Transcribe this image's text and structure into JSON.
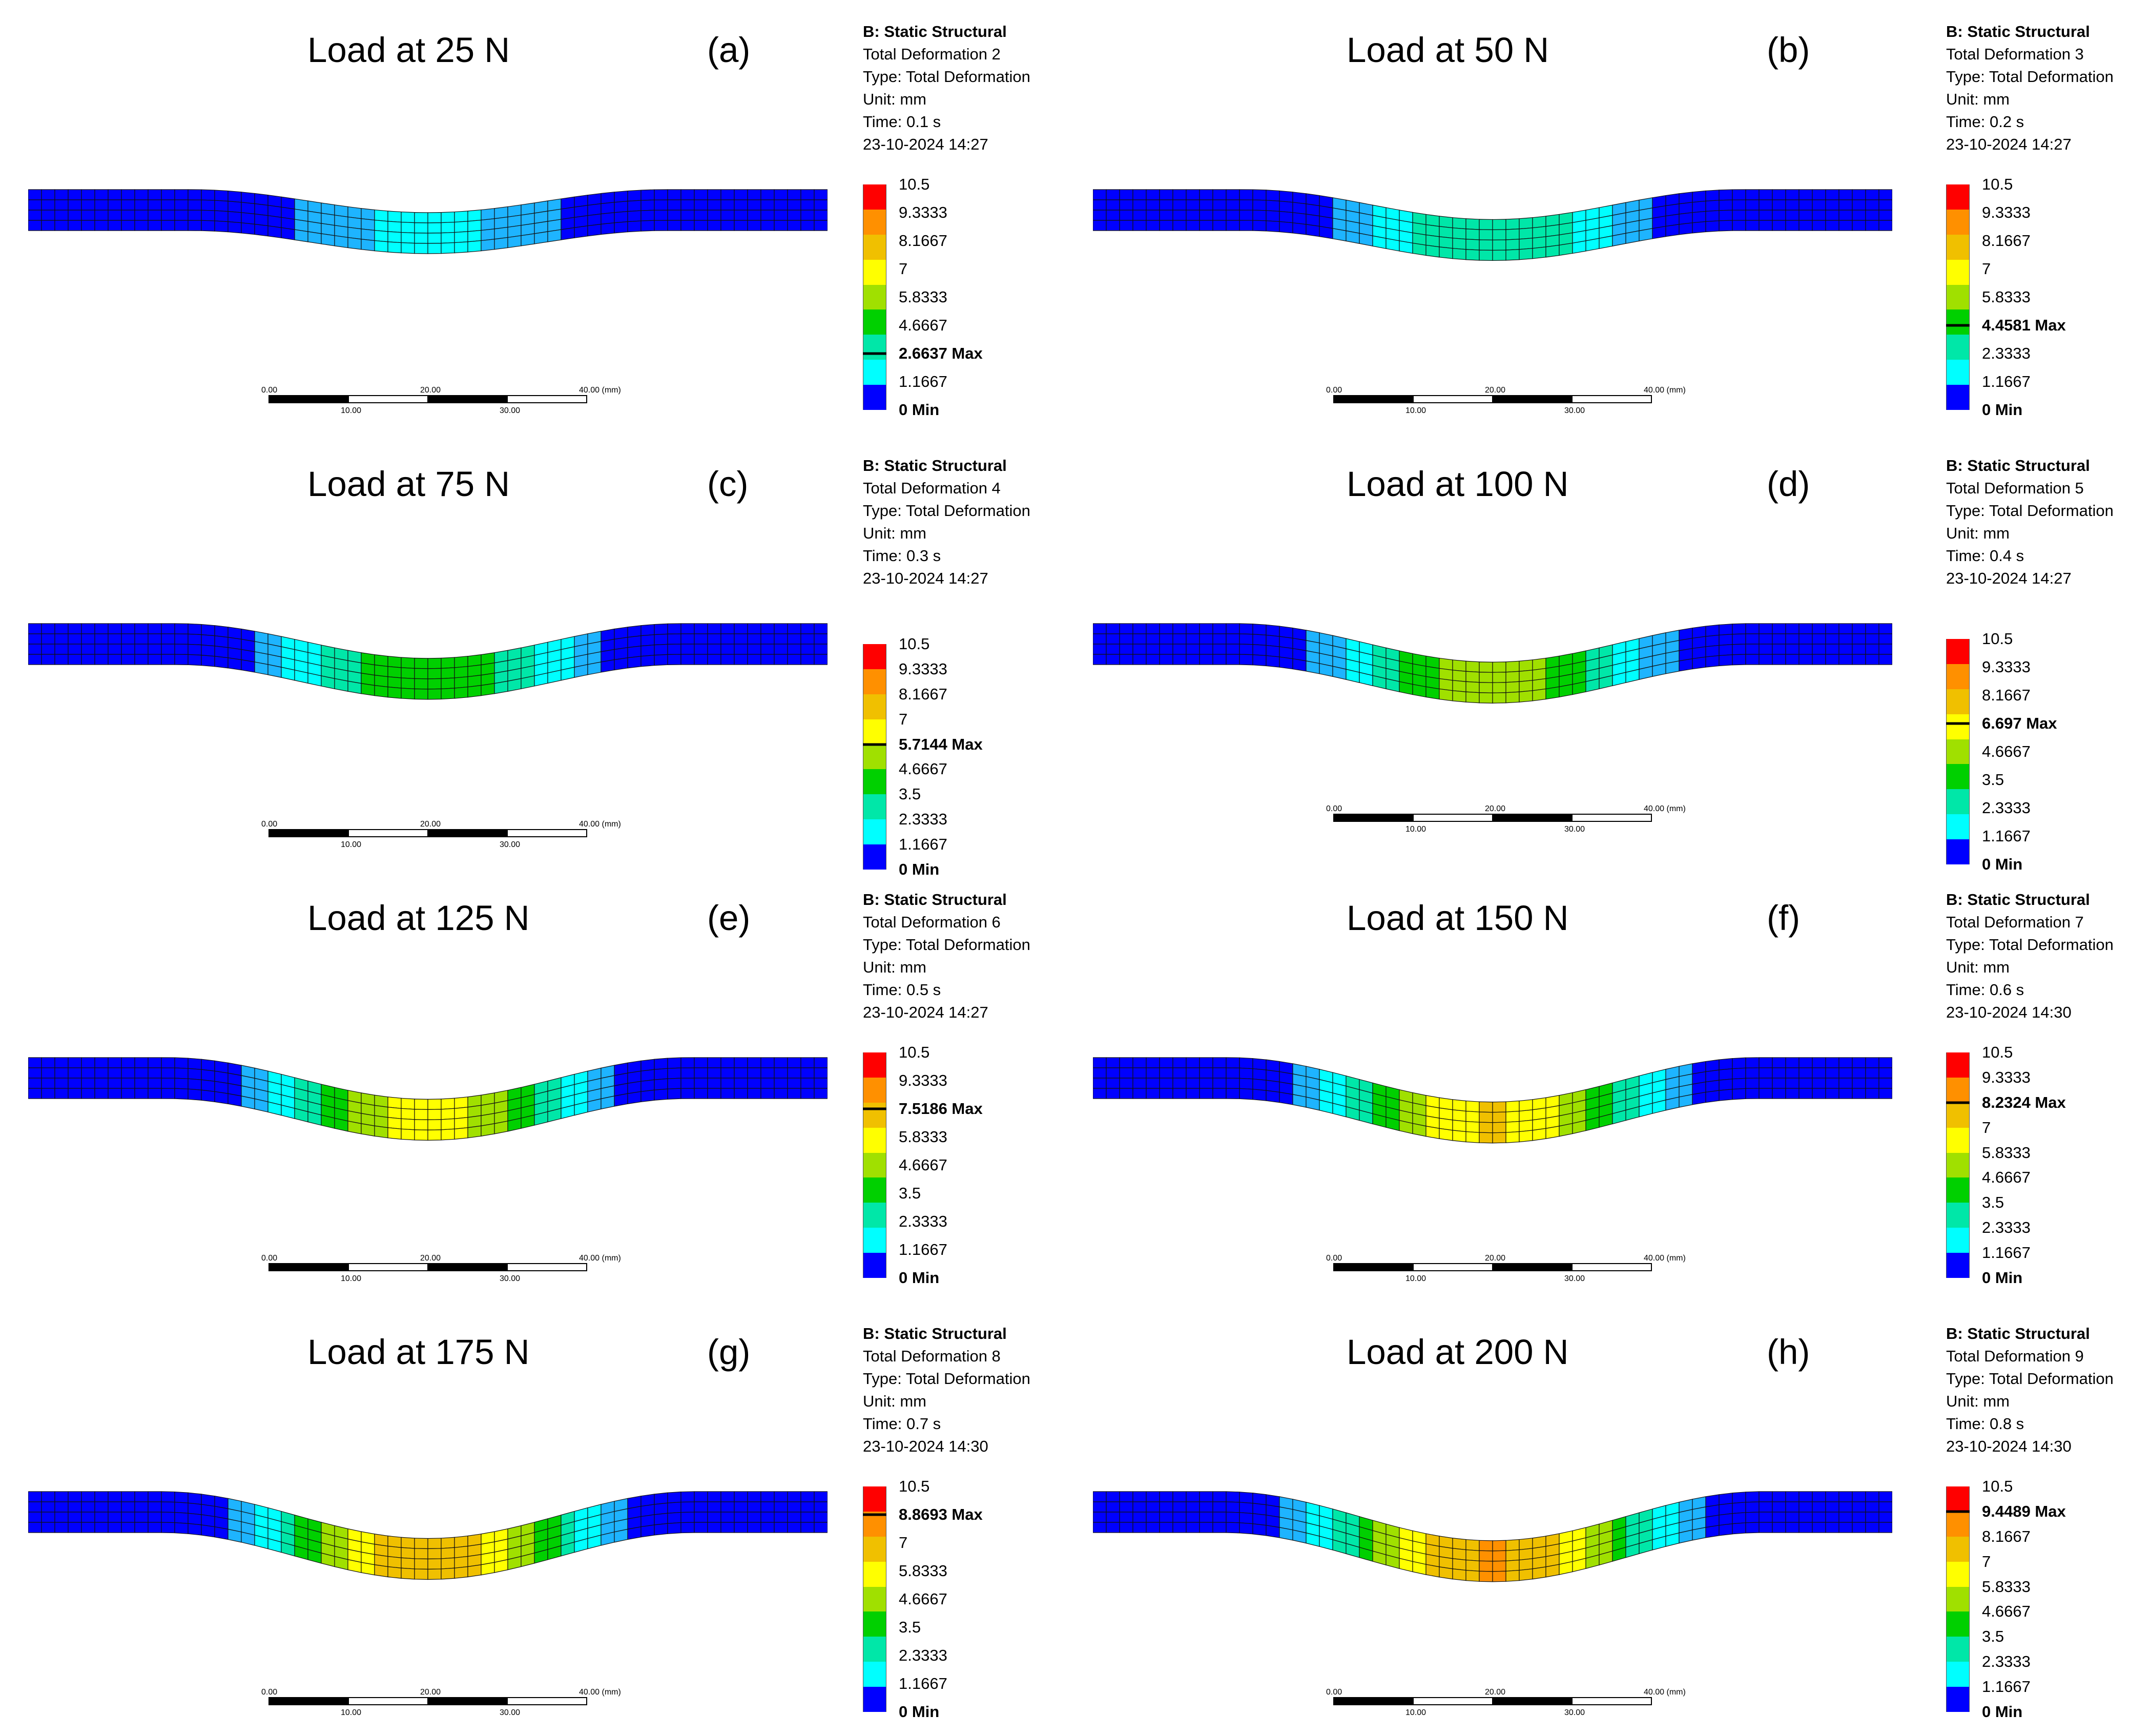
{
  "common": {
    "header": "B: Static Structural",
    "type": "Type: Total Deformation",
    "unit": "Unit: mm",
    "scale_top": [
      "0.00",
      "20.00",
      "40.00 (mm)"
    ],
    "scale_bottom": [
      "10.00",
      "30.00"
    ]
  },
  "colors": {
    "dark_blue": "#0000ff",
    "mid_blue": "#0080ff",
    "light_blue": "#1eb4ff",
    "cyan": "#00ffff",
    "teal": "#00e7a8",
    "green": "#00d000",
    "yellow_green": "#a0e000",
    "yellow": "#ffff00",
    "gold": "#f0c000",
    "orange": "#ff9000",
    "red": "#ff0000",
    "mesh_line": "#111111"
  },
  "panels": [
    {
      "title": "Load at 25 N",
      "letter": "(a)",
      "result": "Total Deformation 2",
      "time": "Time: 0.1 s",
      "timestamp": "23-10-2024 14:27",
      "max_value": 2.6637,
      "load_n": 25,
      "legend": [
        "10.5",
        "9.3333",
        "8.1667",
        "7",
        "5.8333",
        "4.6667",
        "2.6637 Max",
        "1.1667",
        "0 Min"
      ]
    },
    {
      "title": "Load at 50 N",
      "letter": "(b)",
      "result": "Total Deformation 3",
      "time": "Time: 0.2 s",
      "timestamp": "23-10-2024 14:27",
      "max_value": 4.4581,
      "load_n": 50,
      "legend": [
        "10.5",
        "9.3333",
        "8.1667",
        "7",
        "5.8333",
        "4.4581 Max",
        "2.3333",
        "1.1667",
        "0 Min"
      ]
    },
    {
      "title": "Load at 75 N",
      "letter": "(c)",
      "result": "Total Deformation 4",
      "time": "Time: 0.3 s",
      "timestamp": "23-10-2024 14:27",
      "max_value": 5.7144,
      "load_n": 75,
      "legend": [
        "10.5",
        "9.3333",
        "8.1667",
        "7",
        "5.7144 Max",
        "4.6667",
        "3.5",
        "2.3333",
        "1.1667",
        "0 Min"
      ]
    },
    {
      "title": "Load at 100 N",
      "letter": "(d)",
      "result": "Total Deformation 5",
      "time": "Time: 0.4 s",
      "timestamp": "23-10-2024 14:27",
      "max_value": 6.697,
      "load_n": 100,
      "legend": [
        "10.5",
        "9.3333",
        "8.1667",
        "6.697 Max",
        "4.6667",
        "3.5",
        "2.3333",
        "1.1667",
        "0 Min"
      ]
    },
    {
      "title": "Load at 125 N",
      "letter": "(e)",
      "result": "Total Deformation 6",
      "time": "Time: 0.5 s",
      "timestamp": "23-10-2024 14:27",
      "max_value": 7.5186,
      "load_n": 125,
      "legend": [
        "10.5",
        "9.3333",
        "7.5186 Max",
        "5.8333",
        "4.6667",
        "3.5",
        "2.3333",
        "1.1667",
        "0 Min"
      ]
    },
    {
      "title": "Load at 150 N",
      "letter": "(f)",
      "result": "Total Deformation 7",
      "time": "Time: 0.6 s",
      "timestamp": "23-10-2024 14:30",
      "max_value": 8.2324,
      "load_n": 150,
      "legend": [
        "10.5",
        "9.3333",
        "8.2324 Max",
        "7",
        "5.8333",
        "4.6667",
        "3.5",
        "2.3333",
        "1.1667",
        "0 Min"
      ]
    },
    {
      "title": "Load at 175 N",
      "letter": "(g)",
      "result": "Total Deformation 8",
      "time": "Time: 0.7 s",
      "timestamp": "23-10-2024 14:30",
      "max_value": 8.8693,
      "load_n": 175,
      "legend": [
        "10.5",
        "8.8693 Max",
        "7",
        "5.8333",
        "4.6667",
        "3.5",
        "2.3333",
        "1.1667",
        "0 Min"
      ]
    },
    {
      "title": "Load at 200 N",
      "letter": "(h)",
      "result": "Total Deformation 9",
      "time": "Time: 0.8 s",
      "timestamp": "23-10-2024 14:30",
      "max_value": 9.4489,
      "load_n": 200,
      "legend": [
        "10.5",
        "9.4489 Max",
        "8.1667",
        "7",
        "5.8333",
        "4.6667",
        "3.5",
        "2.3333",
        "1.1667",
        "0 Min"
      ]
    }
  ]
}
